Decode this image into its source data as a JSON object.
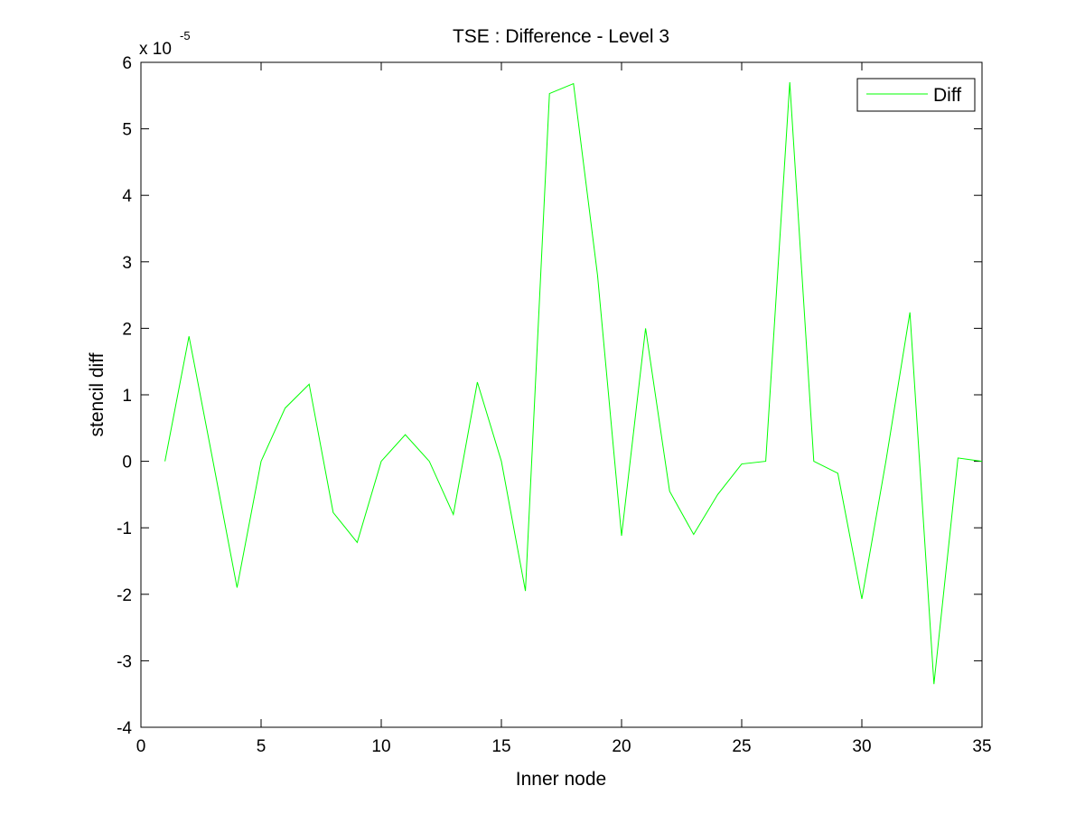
{
  "chart_data": {
    "type": "line",
    "title": "TSE : Difference - Level 3",
    "xlabel": "Inner node",
    "ylabel": "stencil diff",
    "y_multiplier": {
      "base": "x 10",
      "exponent": "-5"
    },
    "xlim": [
      0,
      35
    ],
    "ylim": [
      -4,
      6
    ],
    "x_ticks": [
      0,
      5,
      10,
      15,
      20,
      25,
      30,
      35
    ],
    "y_ticks": [
      -4,
      -3,
      -2,
      -1,
      0,
      1,
      2,
      3,
      4,
      5,
      6
    ],
    "grid": false,
    "legend_position": "top-right",
    "series": [
      {
        "name": "Diff",
        "color": "#00ff00",
        "x": [
          1,
          2,
          3,
          4,
          5,
          6,
          7,
          8,
          9,
          10,
          11,
          12,
          13,
          14,
          15,
          16,
          17,
          18,
          19,
          20,
          21,
          22,
          23,
          24,
          25,
          26,
          27,
          28,
          29,
          30,
          31,
          32,
          33,
          34,
          35
        ],
        "values": [
          0.0,
          1.88,
          0.0,
          -1.9,
          0.0,
          0.8,
          1.16,
          -0.77,
          -1.22,
          0.0,
          0.4,
          0.0,
          -0.8,
          1.19,
          0.0,
          -1.95,
          5.53,
          5.68,
          2.8,
          -1.12,
          2.0,
          -0.45,
          -1.1,
          -0.5,
          -0.04,
          0.0,
          5.7,
          0.0,
          -0.18,
          -2.07,
          0.0,
          2.24,
          -3.35,
          0.05,
          0.0
        ]
      }
    ]
  }
}
